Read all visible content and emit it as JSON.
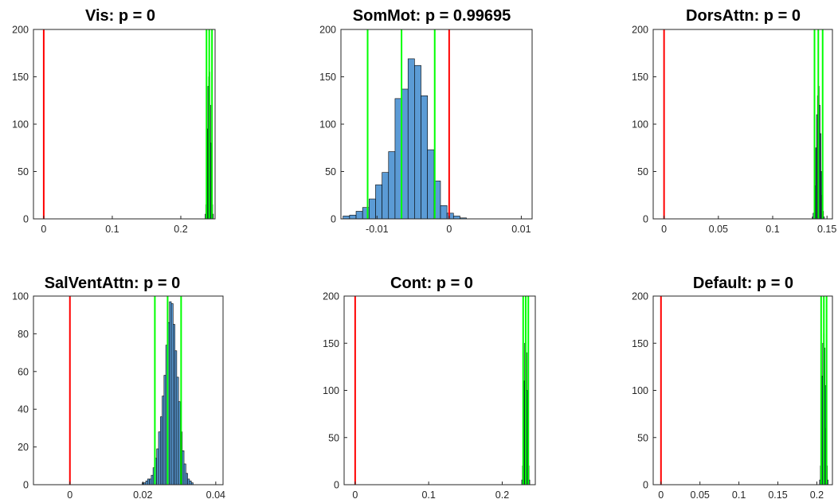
{
  "colors": {
    "bar_fill": "#5b9bd5",
    "bar_edge": "#000000",
    "observed_line": "#ff0000",
    "ci_line": "#00ff00",
    "axes": "#262626"
  },
  "chart_data": [
    {
      "type": "histogram",
      "title": "Vis: p = 0",
      "xlim": [
        -0.015,
        0.25
      ],
      "ylim": [
        0,
        200
      ],
      "xticks": [
        0,
        0.1,
        0.2
      ],
      "xticklabels": [
        "0",
        "0.1",
        "0.2"
      ],
      "yticks": [
        0,
        50,
        100,
        150,
        200
      ],
      "yticklabels": [
        "0",
        "50",
        "100",
        "150",
        "200"
      ],
      "observed_value": 0,
      "ci_lines": [
        0.2375,
        0.2415,
        0.2455
      ],
      "bins": [
        0.2355,
        0.2365,
        0.2375,
        0.2385,
        0.2395,
        0.2405,
        0.2415,
        0.2425,
        0.2435,
        0.2445,
        0.2455,
        0.2465
      ],
      "counts": [
        5,
        15,
        45,
        95,
        140,
        150,
        155,
        120,
        80,
        40,
        15,
        5
      ]
    },
    {
      "type": "histogram",
      "title": "SomMot: p = 0.99695",
      "xlim": [
        -0.015,
        0.0115
      ],
      "ylim": [
        0,
        200
      ],
      "xticks": [
        -0.01,
        0,
        0.01
      ],
      "xticklabels": [
        "-0.01",
        "0",
        "0.01"
      ],
      "yticks": [
        0,
        50,
        100,
        150,
        200
      ],
      "yticklabels": [
        "0",
        "50",
        "100",
        "150",
        "200"
      ],
      "observed_value": 0,
      "ci_lines": [
        -0.0113,
        -0.0066,
        -0.002
      ],
      "bins": [
        -0.0147,
        -0.0138,
        -0.0129,
        -0.012,
        -0.0111,
        -0.0102,
        -0.0093,
        -0.0084,
        -0.0075,
        -0.0066,
        -0.0057,
        -0.0048,
        -0.0039,
        -0.003,
        -0.0021,
        -0.0012,
        -0.0003,
        0.0006,
        0.0015
      ],
      "counts": [
        3,
        4,
        8,
        12,
        21,
        36,
        49,
        71,
        127,
        137,
        169,
        162,
        130,
        73,
        40,
        14,
        6,
        3,
        1
      ]
    },
    {
      "type": "histogram",
      "title": "DorsAttn: p = 0",
      "xlim": [
        -0.01,
        0.155
      ],
      "ylim": [
        0,
        200
      ],
      "xticks": [
        0,
        0.05,
        0.1,
        0.15
      ],
      "xticklabels": [
        "0",
        "0.05",
        "0.1",
        "0.15"
      ],
      "yticks": [
        0,
        50,
        100,
        150,
        200
      ],
      "yticklabels": [
        "0",
        "50",
        "100",
        "150",
        "200"
      ],
      "observed_value": 0,
      "ci_lines": [
        0.1385,
        0.142,
        0.146
      ],
      "bins": [
        0.1364,
        0.1372,
        0.138,
        0.1388,
        0.1396,
        0.1404,
        0.1412,
        0.142,
        0.1428,
        0.1436,
        0.1444,
        0.1452,
        0.146,
        0.1468
      ],
      "counts": [
        2,
        6,
        15,
        35,
        75,
        110,
        130,
        140,
        120,
        90,
        50,
        25,
        8,
        2
      ]
    },
    {
      "type": "histogram",
      "title": "SalVentAttn: p = 0",
      "xlim": [
        -0.01,
        0.042
      ],
      "ylim": [
        0,
        100
      ],
      "xticks": [
        0,
        0.02,
        0.04
      ],
      "xticklabels": [
        "0",
        "0.02",
        "0.04"
      ],
      "yticks": [
        0,
        20,
        40,
        60,
        80,
        100
      ],
      "yticklabels": [
        "0",
        "20",
        "40",
        "60",
        "80",
        "100"
      ],
      "observed_value": 0,
      "ci_lines": [
        0.0233,
        0.0268,
        0.0305
      ],
      "bins": [
        0.0198,
        0.0203,
        0.0208,
        0.0213,
        0.0218,
        0.0223,
        0.0228,
        0.0233,
        0.0238,
        0.0243,
        0.0248,
        0.0253,
        0.0258,
        0.0263,
        0.0268,
        0.0273,
        0.0278,
        0.0283,
        0.0288,
        0.0293,
        0.0298,
        0.0303,
        0.0308,
        0.0313,
        0.0318,
        0.0323,
        0.0328,
        0.0333
      ],
      "counts": [
        1,
        1,
        2,
        3,
        3,
        5,
        9,
        14,
        19,
        28,
        36,
        47,
        58,
        74,
        86,
        97,
        96,
        85,
        71,
        57,
        44,
        28,
        18,
        11,
        6,
        3,
        2,
        1
      ]
    },
    {
      "type": "histogram",
      "title": "Cont: p = 0",
      "xlim": [
        -0.015,
        0.245
      ],
      "ylim": [
        0,
        200
      ],
      "xticks": [
        0,
        0.1,
        0.2
      ],
      "xticklabels": [
        "0",
        "0.1",
        "0.2"
      ],
      "yticks": [
        0,
        50,
        100,
        150,
        200
      ],
      "yticklabels": [
        "0",
        "50",
        "100",
        "150",
        "200"
      ],
      "observed_value": 0,
      "ci_lines": [
        0.2285,
        0.232,
        0.2355
      ],
      "bins": [
        0.2265,
        0.2275,
        0.2285,
        0.2295,
        0.2305,
        0.2315,
        0.2325,
        0.2335,
        0.2345,
        0.2355,
        0.2365
      ],
      "counts": [
        5,
        20,
        60,
        110,
        150,
        155,
        140,
        100,
        55,
        20,
        5
      ]
    },
    {
      "type": "histogram",
      "title": "Default: p = 0",
      "xlim": [
        -0.01,
        0.22
      ],
      "ylim": [
        0,
        200
      ],
      "xticks": [
        0,
        0.05,
        0.1,
        0.15,
        0.2
      ],
      "xticklabels": [
        "0",
        "0.05",
        "0.1",
        "0.15",
        "0.2"
      ],
      "yticks": [
        0,
        50,
        100,
        150,
        200
      ],
      "yticklabels": [
        "0",
        "50",
        "100",
        "150",
        "200"
      ],
      "observed_value": 0,
      "ci_lines": [
        0.2055,
        0.209,
        0.2125
      ],
      "bins": [
        0.2035,
        0.2045,
        0.2055,
        0.2065,
        0.2075,
        0.2085,
        0.2095,
        0.2105,
        0.2115,
        0.2125,
        0.2135
      ],
      "counts": [
        5,
        20,
        60,
        115,
        150,
        160,
        145,
        105,
        60,
        20,
        5
      ]
    }
  ]
}
